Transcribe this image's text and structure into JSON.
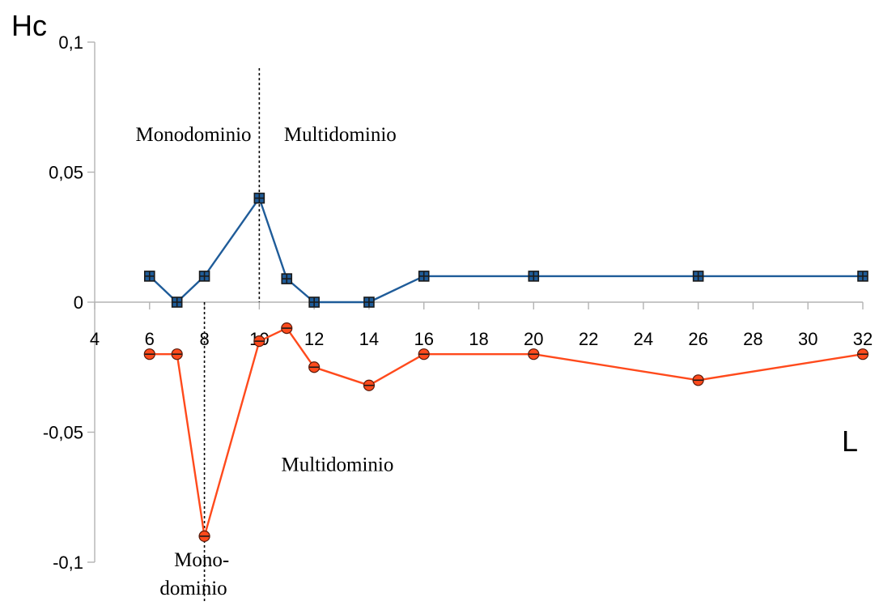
{
  "chart_data": {
    "type": "line",
    "title": "",
    "xlabel": "L",
    "ylabel": "Hc",
    "xlim": [
      4,
      32
    ],
    "ylim": [
      -0.1,
      0.1
    ],
    "x_ticks": [
      4,
      6,
      8,
      10,
      12,
      14,
      16,
      18,
      20,
      22,
      24,
      26,
      28,
      30,
      32
    ],
    "x_tick_labels": [
      "4",
      "6",
      "8",
      "10",
      "12",
      "14",
      "16",
      "18",
      "20",
      "22",
      "24",
      "26",
      "28",
      "30",
      "32"
    ],
    "y_ticks": [
      -0.1,
      -0.05,
      0,
      0.05,
      0.1
    ],
    "y_tick_labels": [
      "-0,1",
      "-0,05",
      "0",
      "0,05",
      "0,1"
    ],
    "grid": false,
    "legend": "none",
    "series": [
      {
        "color": "#1f5c99",
        "marker": "square",
        "x": [
          6,
          7,
          8,
          10,
          11,
          12,
          14,
          16,
          20,
          26,
          32
        ],
        "values": [
          0.01,
          0.0,
          0.01,
          0.04,
          0.009,
          0.0,
          0.0,
          0.01,
          0.01,
          0.01,
          0.01
        ]
      },
      {
        "color": "#ff4a1c",
        "marker": "circle",
        "x": [
          6,
          7,
          8,
          10,
          11,
          12,
          14,
          16,
          20,
          26,
          32
        ],
        "values": [
          -0.02,
          -0.02,
          -0.09,
          -0.015,
          -0.01,
          -0.025,
          -0.032,
          -0.02,
          -0.02,
          -0.03,
          -0.02
        ]
      }
    ],
    "dividers": [
      {
        "x": 10,
        "y_from": 0.09,
        "y_to": 0.0
      },
      {
        "x": 8,
        "y_from": 0.0,
        "y_to": -0.115
      }
    ],
    "annotations": [
      {
        "text": "Monodominio",
        "x": 7.6,
        "y": 0.062,
        "anchor": "middle"
      },
      {
        "text": "Multidominio",
        "x": 10.9,
        "y": 0.062,
        "anchor": "start"
      },
      {
        "text": "Multidominio",
        "x": 10.8,
        "y": -0.065,
        "anchor": "start"
      },
      {
        "text": "Mono-",
        "x": 7.9,
        "y": -0.1015,
        "anchor": "middle"
      },
      {
        "text": "dominio",
        "x": 7.6,
        "y": -0.1125,
        "anchor": "middle"
      }
    ]
  }
}
